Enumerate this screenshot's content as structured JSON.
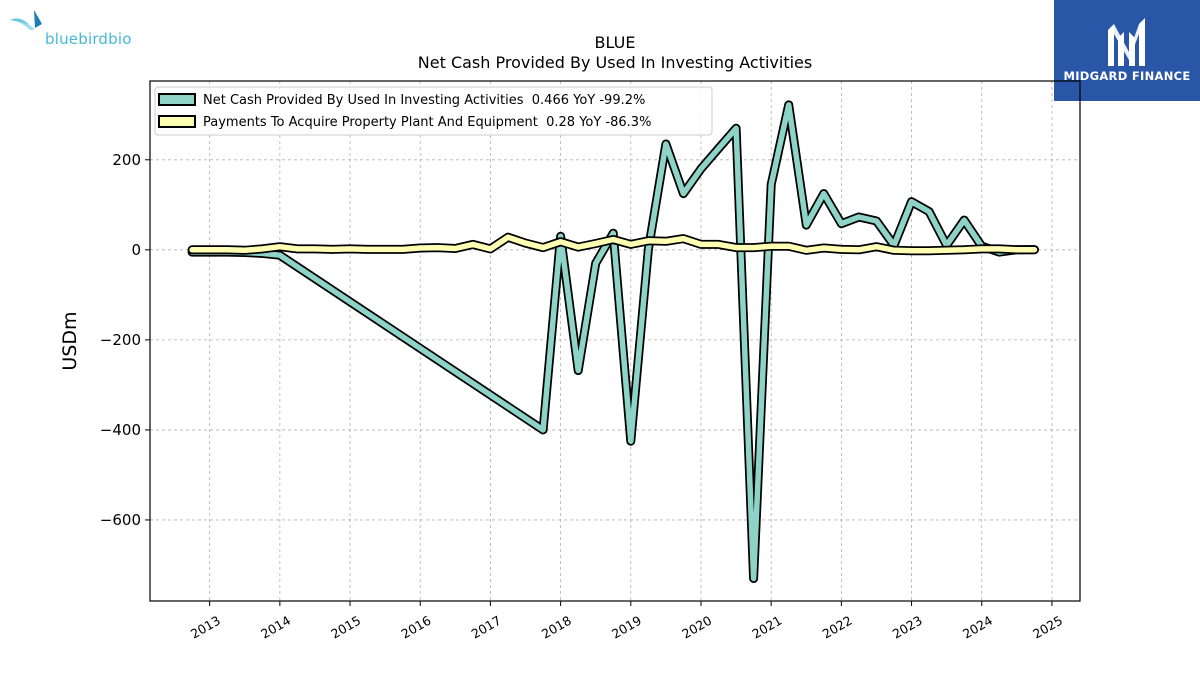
{
  "logos": {
    "left_text": "bluebirdbio",
    "right_text": "MIDGARD FINANCE"
  },
  "chart_data": {
    "type": "line",
    "title": "BLUE",
    "subtitle": "Net Cash Provided By Used In Investing Activities",
    "xlabel": "",
    "ylabel": "USDm",
    "xlim": [
      2012.15,
      2025.4
    ],
    "ylim": [
      -780,
      375
    ],
    "x_ticks": [
      "2013",
      "2014",
      "2015",
      "2016",
      "2017",
      "2018",
      "2019",
      "2020",
      "2021",
      "2022",
      "2023",
      "2024",
      "2025"
    ],
    "y_ticks": [
      200,
      0,
      -200,
      -400,
      -600
    ],
    "y_tick_labels": [
      "200",
      "0",
      "−200",
      "−400",
      "−600"
    ],
    "grid": true,
    "legend_position": "upper-left",
    "series": [
      {
        "name": "Net Cash Provided By Used In Investing Activities  0.466 YoY -99.2%",
        "color": "#8dd3c7",
        "points": [
          [
            2012.75,
            -5
          ],
          [
            2013.0,
            -5
          ],
          [
            2013.25,
            -5
          ],
          [
            2013.5,
            -6
          ],
          [
            2013.75,
            -8
          ],
          [
            2014.0,
            -12
          ],
          [
            2017.75,
            -400
          ],
          [
            2018.0,
            30
          ],
          [
            2018.25,
            -268
          ],
          [
            2018.5,
            -30
          ],
          [
            2018.75,
            37
          ],
          [
            2019.0,
            -425
          ],
          [
            2019.25,
            0
          ],
          [
            2019.5,
            235
          ],
          [
            2019.75,
            125
          ],
          [
            2020.0,
            180
          ],
          [
            2020.25,
            225
          ],
          [
            2020.5,
            270
          ],
          [
            2020.75,
            -730
          ],
          [
            2021.0,
            145
          ],
          [
            2021.25,
            322
          ],
          [
            2021.5,
            55
          ],
          [
            2021.75,
            125
          ],
          [
            2022.0,
            58
          ],
          [
            2022.25,
            73
          ],
          [
            2022.5,
            64
          ],
          [
            2022.75,
            10
          ],
          [
            2023.0,
            107
          ],
          [
            2023.25,
            85
          ],
          [
            2023.5,
            10
          ],
          [
            2023.75,
            66
          ],
          [
            2024.0,
            8
          ],
          [
            2024.25,
            -5
          ],
          [
            2024.5,
            0
          ],
          [
            2024.75,
            0.5
          ]
        ]
      },
      {
        "name": "Payments To Acquire Property Plant And Equipment  0.28 YoY -86.3%",
        "color": "#ffffb3",
        "points": [
          [
            2012.75,
            0
          ],
          [
            2013.0,
            0
          ],
          [
            2013.25,
            0
          ],
          [
            2013.5,
            -1
          ],
          [
            2013.75,
            2
          ],
          [
            2014.0,
            7
          ],
          [
            2014.25,
            2
          ],
          [
            2014.5,
            2
          ],
          [
            2014.75,
            1
          ],
          [
            2015.0,
            2
          ],
          [
            2015.25,
            1
          ],
          [
            2015.5,
            1
          ],
          [
            2015.75,
            1
          ],
          [
            2016.0,
            4
          ],
          [
            2016.25,
            5
          ],
          [
            2016.5,
            3
          ],
          [
            2016.75,
            12
          ],
          [
            2017.0,
            2
          ],
          [
            2017.25,
            28
          ],
          [
            2017.5,
            15
          ],
          [
            2017.75,
            5
          ],
          [
            2018.0,
            18
          ],
          [
            2018.25,
            6
          ],
          [
            2018.5,
            14
          ],
          [
            2018.75,
            23
          ],
          [
            2019.0,
            12
          ],
          [
            2019.25,
            20
          ],
          [
            2019.5,
            19
          ],
          [
            2019.75,
            25
          ],
          [
            2020.0,
            12
          ],
          [
            2020.25,
            12
          ],
          [
            2020.5,
            5
          ],
          [
            2020.75,
            5
          ],
          [
            2021.0,
            8
          ],
          [
            2021.25,
            8
          ],
          [
            2021.5,
            -1
          ],
          [
            2021.75,
            4
          ],
          [
            2022.0,
            1
          ],
          [
            2022.25,
            0
          ],
          [
            2022.5,
            7
          ],
          [
            2022.75,
            -1
          ],
          [
            2023.0,
            -2
          ],
          [
            2023.25,
            -2
          ],
          [
            2023.5,
            -1
          ],
          [
            2023.75,
            0
          ],
          [
            2024.0,
            2
          ],
          [
            2024.25,
            2
          ],
          [
            2024.5,
            0
          ],
          [
            2024.75,
            0.3
          ]
        ]
      }
    ]
  }
}
